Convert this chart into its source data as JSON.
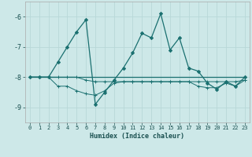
{
  "xlabel": "Humidex (Indice chaleur)",
  "background_color": "#cde8e8",
  "grid_color": "#b8d8d8",
  "line_color": "#1a7070",
  "xlim": [
    -0.5,
    23.5
  ],
  "ylim": [
    -9.5,
    -5.5
  ],
  "yticks": [
    -9,
    -8,
    -7,
    -6
  ],
  "xticks": [
    0,
    1,
    2,
    3,
    4,
    5,
    6,
    7,
    8,
    9,
    10,
    11,
    12,
    13,
    14,
    15,
    16,
    17,
    18,
    19,
    20,
    21,
    22,
    23
  ],
  "line1_x": [
    0,
    1,
    2,
    3,
    4,
    5,
    6,
    7,
    8,
    9,
    10,
    11,
    12,
    13,
    14,
    15,
    16,
    17,
    18,
    19,
    20,
    21,
    22,
    23
  ],
  "line1_y": [
    -8.0,
    -8.0,
    -8.0,
    -8.0,
    -8.0,
    -8.0,
    -8.0,
    -8.0,
    -8.0,
    -8.0,
    -8.0,
    -8.0,
    -8.0,
    -8.0,
    -8.0,
    -8.0,
    -8.0,
    -8.0,
    -8.0,
    -8.0,
    -8.0,
    -8.0,
    -8.0,
    -8.0
  ],
  "line2_x": [
    0,
    1,
    2,
    3,
    4,
    5,
    6,
    7,
    8,
    9,
    10,
    11,
    12,
    13,
    14,
    15,
    16,
    17,
    18,
    19,
    20,
    21,
    22,
    23
  ],
  "line2_y": [
    -8.0,
    -8.0,
    -8.0,
    -8.0,
    -8.0,
    -8.0,
    -8.1,
    -8.15,
    -8.15,
    -8.15,
    -8.15,
    -8.15,
    -8.15,
    -8.15,
    -8.15,
    -8.15,
    -8.15,
    -8.15,
    -8.15,
    -8.15,
    -8.15,
    -8.15,
    -8.15,
    -8.1
  ],
  "line3_x": [
    0,
    1,
    2,
    3,
    4,
    5,
    6,
    7,
    8,
    9,
    10,
    11,
    12,
    13,
    14,
    15,
    16,
    17,
    18,
    19,
    20,
    21,
    22,
    23
  ],
  "line3_y": [
    -8.0,
    -8.0,
    -8.0,
    -8.3,
    -8.3,
    -8.45,
    -8.55,
    -8.6,
    -8.45,
    -8.2,
    -8.15,
    -8.15,
    -8.15,
    -8.15,
    -8.15,
    -8.15,
    -8.15,
    -8.15,
    -8.3,
    -8.35,
    -8.35,
    -8.2,
    -8.3,
    -8.1
  ],
  "line4_x": [
    0,
    1,
    2,
    3,
    4,
    5,
    6,
    7,
    8,
    9,
    10,
    11,
    12,
    13,
    14,
    15,
    16,
    17,
    18,
    19,
    20,
    21,
    22,
    23
  ],
  "line4_y": [
    -8.0,
    -8.0,
    -8.0,
    -7.5,
    -7.0,
    -6.5,
    -6.1,
    -8.9,
    -8.5,
    -8.1,
    -7.7,
    -7.2,
    -6.55,
    -6.7,
    -5.9,
    -7.1,
    -6.7,
    -7.7,
    -7.8,
    -8.2,
    -8.4,
    -8.15,
    -8.3,
    -8.0
  ]
}
